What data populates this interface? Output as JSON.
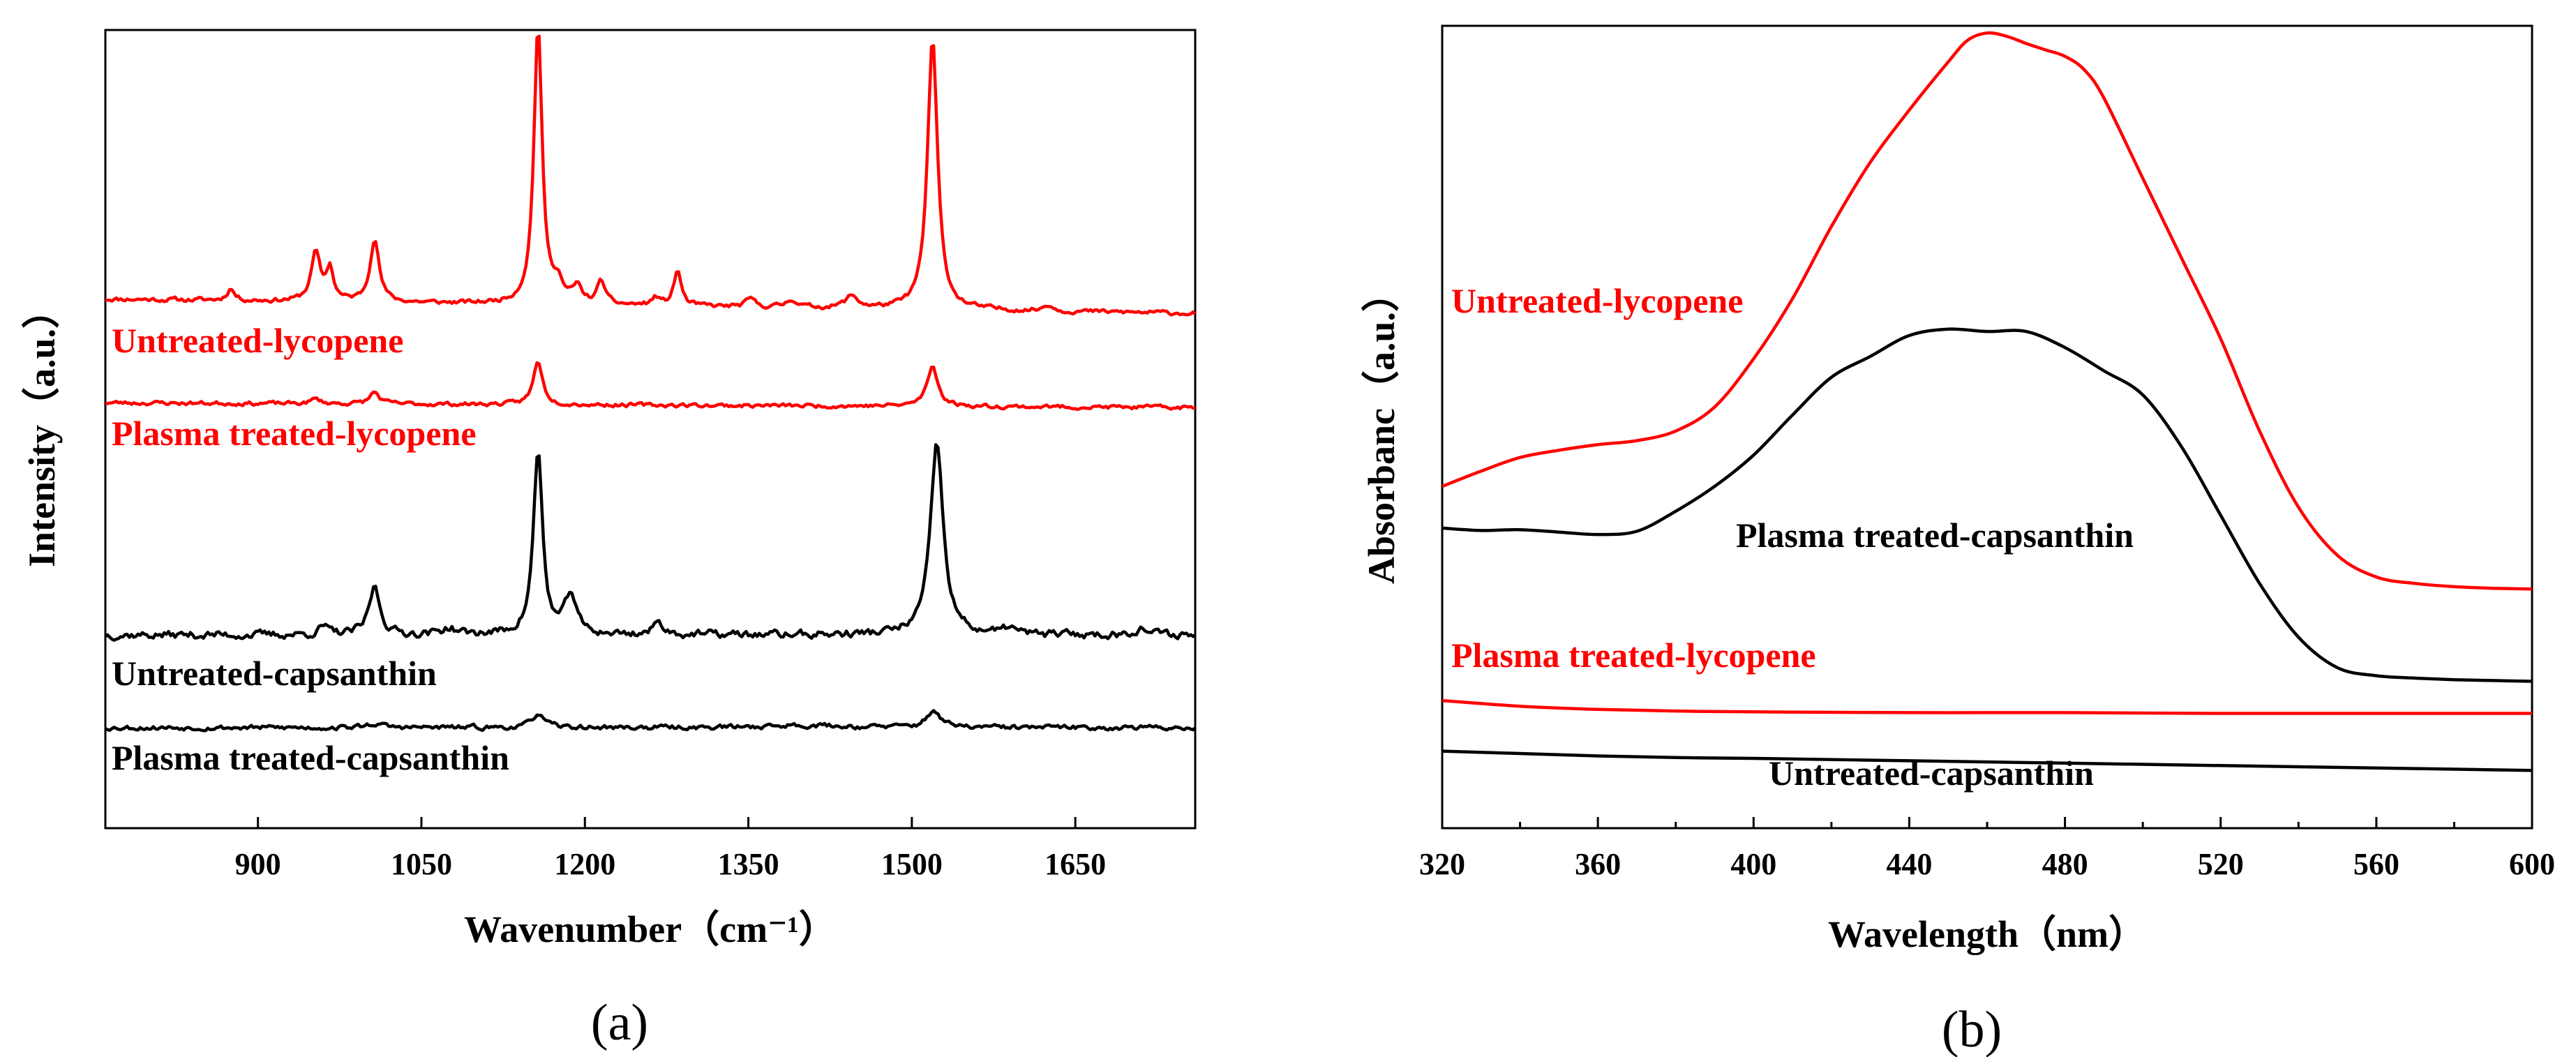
{
  "colors": {
    "red": "#ff0000",
    "black": "#000000"
  },
  "chart_data": [
    {
      "id": "a",
      "type": "line",
      "panel_label": "(a)",
      "xlabel": "Wavenumber（cm⁻¹）",
      "ylabel": "Intensity（a.u.）",
      "xlim": [
        760,
        1760
      ],
      "ylim": [
        0,
        100
      ],
      "x_ticks": [
        900,
        1050,
        1200,
        1350,
        1500,
        1650
      ],
      "y_ticks_shown": false,
      "series": [
        {
          "name": "Untreated-lycopene",
          "color": "#ff0000",
          "baseline": 66.3,
          "tilt": -1.8,
          "noise": 0.5,
          "seed": 11,
          "peaks": [
            [
              1157,
              35,
              4.5
            ],
            [
              1519,
              34,
              5.5
            ],
            [
              1007,
              8,
              5
            ],
            [
              953,
              6,
              5
            ],
            [
              966,
              4,
              4
            ],
            [
              1175,
              2.5,
              5
            ],
            [
              1215,
              3,
              4
            ],
            [
              1285,
              4.5,
              4
            ],
            [
              1193,
              2,
              5
            ],
            [
              875,
              1.5,
              4
            ],
            [
              1265,
              1,
              4
            ],
            [
              1352,
              1,
              5
            ],
            [
              1390,
              1,
              6
            ],
            [
              1445,
              1.5,
              7
            ],
            [
              1625,
              0.8,
              5
            ]
          ]
        },
        {
          "name": "Plasma treated-lycopene",
          "color": "#ff0000",
          "baseline": 53.3,
          "tilt": -0.6,
          "noise": 0.45,
          "seed": 23,
          "peaks": [
            [
              1157,
              5.5,
              5
            ],
            [
              1519,
              5,
              6
            ],
            [
              1007,
              1.5,
              5
            ],
            [
              953,
              0.6,
              5
            ]
          ]
        },
        {
          "name": "Untreated-capsanthin",
          "color": "#000000",
          "baseline": 24.2,
          "tilt": 0,
          "noise": 0.9,
          "seed": 37,
          "peaks": [
            [
              1157,
              23,
              5
            ],
            [
              1523,
              24,
              7
            ],
            [
              1007,
              6,
              6
            ],
            [
              1187,
              5,
              6
            ],
            [
              1268,
              1.5,
              6
            ],
            [
              960,
              1,
              5
            ],
            [
              1075,
              0.8,
              8
            ],
            [
              1590,
              1,
              5
            ],
            [
              1710,
              0.8,
              8
            ]
          ]
        },
        {
          "name": "Plasma treated-capsanthin",
          "color": "#000000",
          "baseline": 12.6,
          "tilt": 0,
          "noise": 0.55,
          "seed": 53,
          "peaks": [
            [
              1157,
              1.8,
              6
            ],
            [
              1520,
              2.2,
              7
            ],
            [
              1007,
              0.5,
              8
            ],
            [
              1400,
              0.3,
              40
            ]
          ]
        }
      ]
    },
    {
      "id": "b",
      "type": "line",
      "panel_label": "(b)",
      "xlabel": "Wavelength（nm）",
      "ylabel": "Absorbanc（a.u.）",
      "xlim": [
        320,
        600
      ],
      "ylim": [
        0,
        100
      ],
      "x_ticks": [
        320,
        360,
        400,
        440,
        480,
        520,
        560,
        600
      ],
      "y_ticks_shown": false,
      "series": [
        {
          "name": "Untreated-lycopene",
          "color": "#ff0000",
          "x": [
            320,
            330,
            340,
            350,
            360,
            370,
            380,
            390,
            400,
            410,
            420,
            430,
            440,
            450,
            455,
            460,
            465,
            470,
            475,
            480,
            485,
            490,
            500,
            510,
            520,
            530,
            540,
            550,
            560,
            570,
            580,
            590,
            600
          ],
          "y": [
            42.6,
            44.5,
            46.2,
            47.1,
            47.8,
            48.3,
            49.5,
            52.5,
            58.5,
            66,
            75,
            83,
            89.5,
            95.5,
            98.2,
            99.1,
            98.7,
            97.8,
            97,
            96.2,
            94.5,
            91,
            81,
            71,
            61,
            49.5,
            40,
            34,
            31.3,
            30.5,
            30.1,
            29.9,
            29.8
          ]
        },
        {
          "name": "Plasma treated-capsanthin",
          "color": "#000000",
          "x": [
            320,
            330,
            340,
            350,
            360,
            370,
            380,
            390,
            400,
            410,
            420,
            430,
            440,
            450,
            460,
            470,
            480,
            490,
            500,
            510,
            520,
            530,
            540,
            550,
            560,
            570,
            580,
            590,
            600
          ],
          "y": [
            37.4,
            37.1,
            37.2,
            36.9,
            36.6,
            37,
            39.5,
            42.6,
            46.5,
            51.5,
            56.2,
            58.8,
            61.4,
            62.2,
            61.9,
            61.9,
            59.9,
            57,
            54,
            47.5,
            39,
            30.5,
            23.8,
            20,
            19,
            18.7,
            18.5,
            18.4,
            18.3
          ]
        },
        {
          "name": "Plasma treated-lycopene",
          "color": "#ff0000",
          "x": [
            320,
            340,
            360,
            380,
            400,
            440,
            480,
            520,
            560,
            600
          ],
          "y": [
            15.9,
            15.2,
            14.8,
            14.6,
            14.5,
            14.4,
            14.4,
            14.3,
            14.3,
            14.3
          ]
        },
        {
          "name": "Untreated-capsanthin",
          "color": "#000000",
          "x": [
            320,
            340,
            360,
            380,
            400,
            440,
            480,
            520,
            560,
            600
          ],
          "y": [
            9.6,
            9.3,
            9.0,
            8.8,
            8.7,
            8.4,
            8.1,
            7.8,
            7.5,
            7.2
          ]
        }
      ]
    }
  ]
}
